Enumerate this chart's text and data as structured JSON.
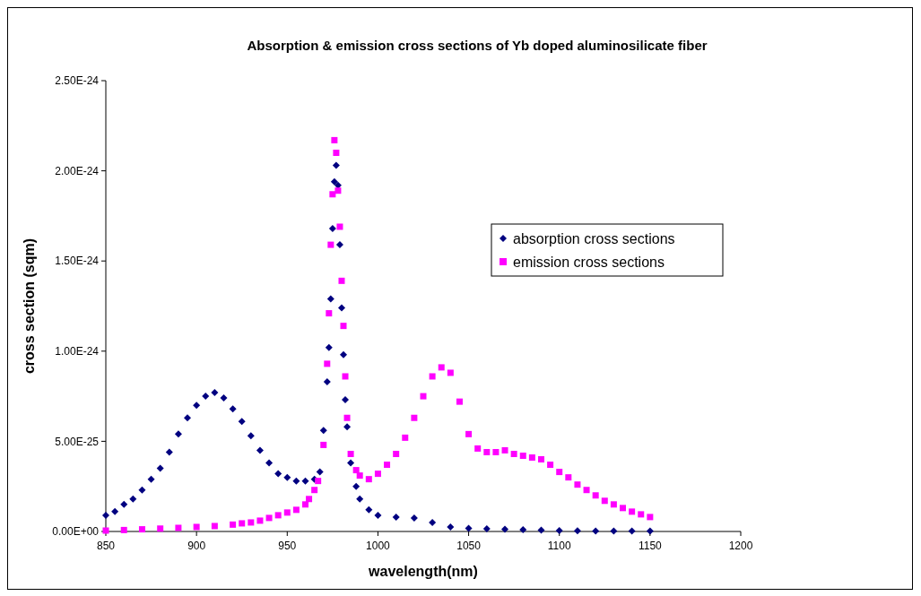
{
  "chart_data": {
    "type": "scatter",
    "title": "Absorption & emission cross sections of Yb doped aluminosilicate fiber",
    "xlabel": "wavelength(nm)",
    "ylabel": "cross section (sqm)",
    "xlim": [
      850,
      1200
    ],
    "xticks": [
      850,
      900,
      950,
      1000,
      1050,
      1100,
      1150,
      1200
    ],
    "ylim": [
      0,
      2.5e-24
    ],
    "yticks": [
      {
        "value": 0,
        "label": "0.00E+00"
      },
      {
        "value": 5e-25,
        "label": "5.00E-25"
      },
      {
        "value": 1e-24,
        "label": "1.00E-24"
      },
      {
        "value": 1.5e-24,
        "label": "1.50E-24"
      },
      {
        "value": 2e-24,
        "label": "2.00E-24"
      },
      {
        "value": 2.5e-24,
        "label": "2.50E-24"
      }
    ],
    "legend": "right",
    "grid": false,
    "series": [
      {
        "name": "absorption cross sections",
        "color": "#000080",
        "marker": "diamond",
        "x": [
          850,
          855,
          860,
          865,
          870,
          875,
          880,
          885,
          890,
          895,
          900,
          905,
          910,
          915,
          920,
          925,
          930,
          935,
          940,
          945,
          950,
          955,
          960,
          965,
          968,
          970,
          972,
          973,
          974,
          975,
          976,
          977,
          978,
          979,
          980,
          981,
          982,
          983,
          985,
          988,
          990,
          995,
          1000,
          1010,
          1020,
          1030,
          1040,
          1050,
          1060,
          1070,
          1080,
          1090,
          1100,
          1110,
          1120,
          1130,
          1140,
          1150
        ],
        "values": [
          9e-26,
          1.1e-25,
          1.5e-25,
          1.8e-25,
          2.3e-25,
          2.9e-25,
          3.5e-25,
          4.4e-25,
          5.4e-25,
          6.3e-25,
          7e-25,
          7.5e-25,
          7.7e-25,
          7.4e-25,
          6.8e-25,
          6.1e-25,
          5.3e-25,
          4.5e-25,
          3.8e-25,
          3.2e-25,
          3e-25,
          2.8e-25,
          2.8e-25,
          2.9e-25,
          3.3e-25,
          5.6e-25,
          8.3e-25,
          1.02e-24,
          1.29e-24,
          1.68e-24,
          1.94e-24,
          2.03e-24,
          1.92e-24,
          1.59e-24,
          1.24e-24,
          9.8e-25,
          7.3e-25,
          5.8e-25,
          3.8e-25,
          2.5e-25,
          1.8e-25,
          1.2e-25,
          9e-26,
          8e-26,
          7.5e-26,
          5e-26,
          2.5e-26,
          1.8e-26,
          1.5e-26,
          1.2e-26,
          1e-26,
          8e-27,
          5e-27,
          4e-27,
          3e-27,
          3e-27,
          3e-27,
          3e-27
        ]
      },
      {
        "name": "emission cross sections",
        "color": "#ff00ff",
        "marker": "square",
        "x": [
          850,
          860,
          870,
          880,
          890,
          900,
          910,
          920,
          925,
          930,
          935,
          940,
          945,
          950,
          955,
          960,
          962,
          965,
          967,
          970,
          972,
          973,
          974,
          975,
          976,
          977,
          978,
          979,
          980,
          981,
          982,
          983,
          985,
          988,
          990,
          995,
          1000,
          1005,
          1010,
          1015,
          1020,
          1025,
          1030,
          1035,
          1040,
          1045,
          1050,
          1055,
          1060,
          1065,
          1070,
          1075,
          1080,
          1085,
          1090,
          1095,
          1100,
          1105,
          1110,
          1115,
          1120,
          1125,
          1130,
          1135,
          1140,
          1145,
          1150
        ],
        "values": [
          5e-27,
          8e-27,
          1.2e-26,
          1.6e-26,
          2e-26,
          2.5e-26,
          3e-26,
          3.8e-26,
          4.5e-26,
          5e-26,
          6e-26,
          7.5e-26,
          9e-26,
          1.05e-25,
          1.2e-25,
          1.5e-25,
          1.8e-25,
          2.3e-25,
          2.8e-25,
          4.8e-25,
          9.3e-25,
          1.21e-24,
          1.59e-24,
          1.87e-24,
          2.17e-24,
          2.1e-24,
          1.89e-24,
          1.69e-24,
          1.39e-24,
          1.14e-24,
          8.6e-25,
          6.3e-25,
          4.3e-25,
          3.4e-25,
          3.1e-25,
          2.9e-25,
          3.2e-25,
          3.7e-25,
          4.3e-25,
          5.2e-25,
          6.3e-25,
          7.5e-25,
          8.6e-25,
          9.1e-25,
          8.8e-25,
          7.2e-25,
          5.4e-25,
          4.6e-25,
          4.4e-25,
          4.4e-25,
          4.5e-25,
          4.3e-25,
          4.2e-25,
          4.1e-25,
          4e-25,
          3.7e-25,
          3.3e-25,
          3e-25,
          2.6e-25,
          2.3e-25,
          2e-25,
          1.7e-25,
          1.5e-25,
          1.3e-25,
          1.1e-25,
          9.5e-26,
          8e-26
        ]
      }
    ]
  }
}
